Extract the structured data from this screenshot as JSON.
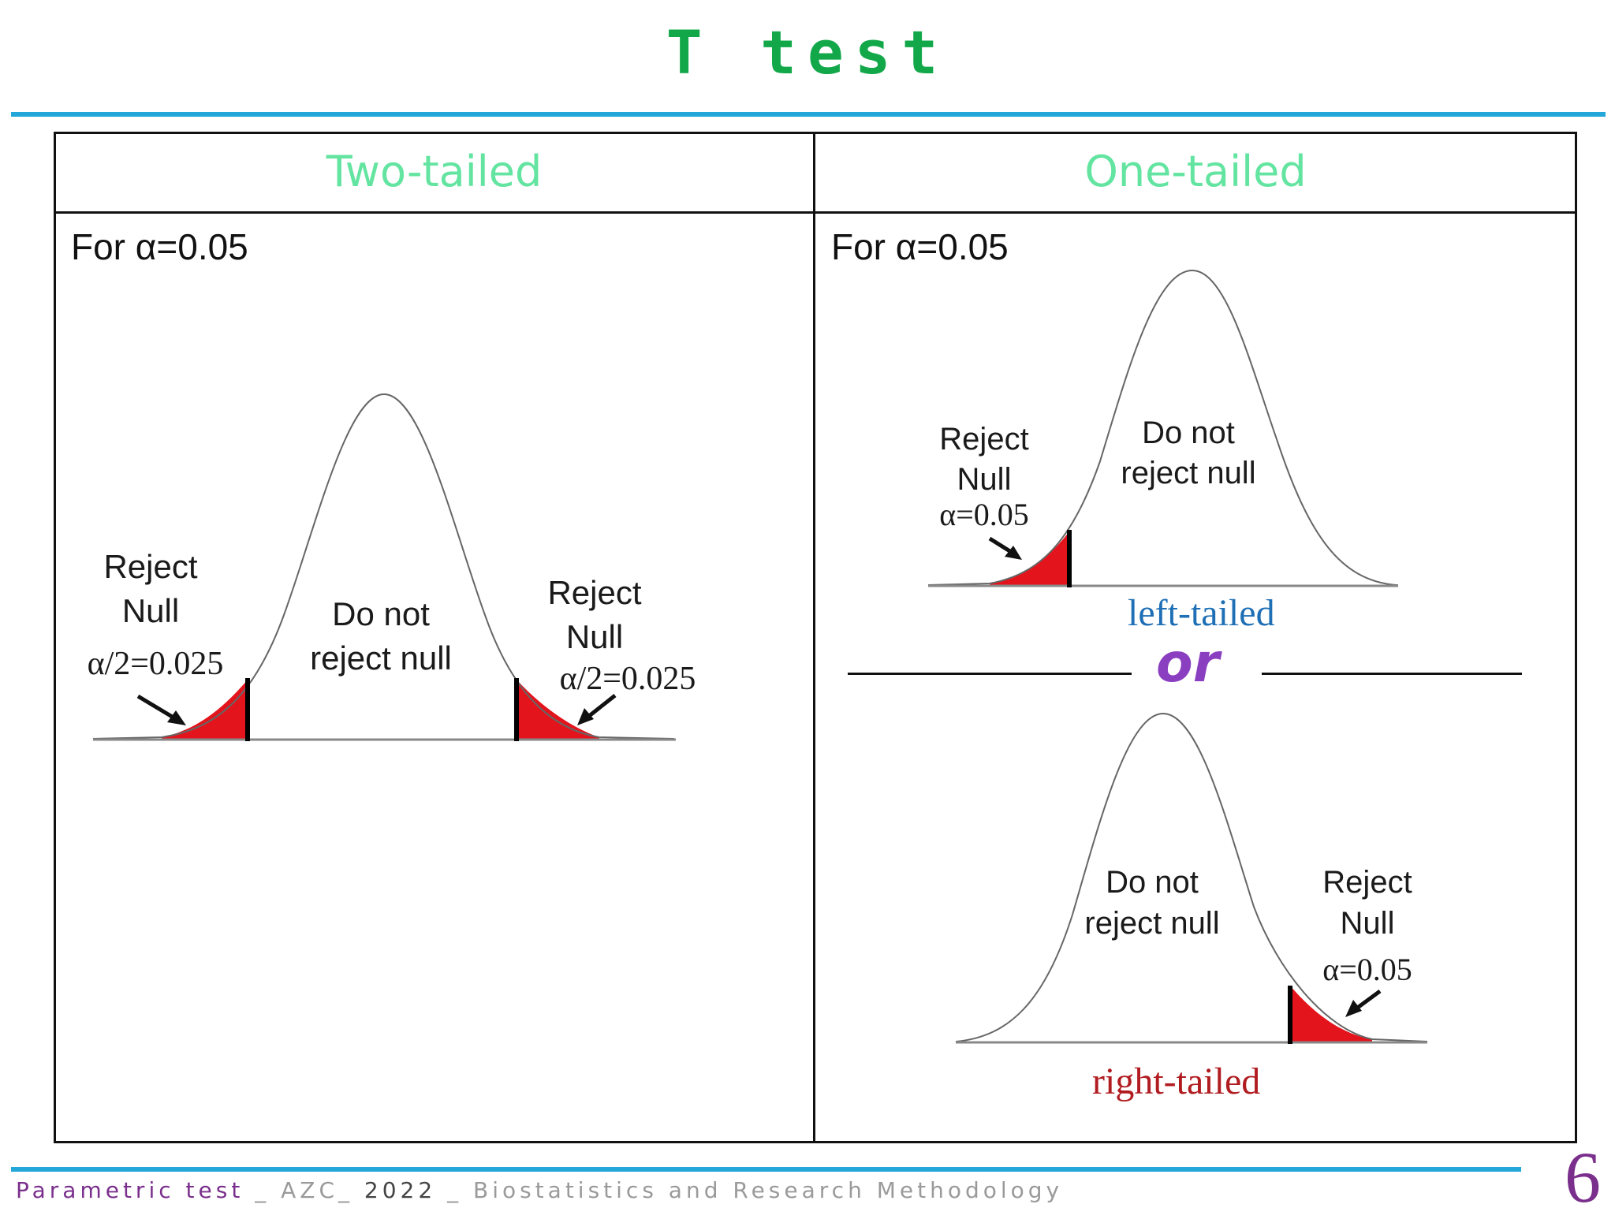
{
  "title": "T test",
  "table": {
    "headers": [
      "Two-tailed",
      "One-tailed"
    ],
    "alpha_text": "For α=0.05"
  },
  "two_tailed": {
    "reject_left": [
      "Reject",
      "Null",
      "α/2=0.025"
    ],
    "reject_right": [
      "Reject",
      "Null",
      "α/2=0.025"
    ],
    "accept": [
      "Do not",
      "reject null"
    ]
  },
  "left_tailed": {
    "reject": [
      "Reject",
      "Null",
      "α=0.05"
    ],
    "accept": [
      "Do not",
      "reject null"
    ],
    "caption": "left-tailed"
  },
  "separator": "or",
  "right_tailed": {
    "reject": [
      "Reject",
      "Null",
      "α=0.05"
    ],
    "accept": [
      "Do not",
      "reject null"
    ],
    "caption": "right-tailed"
  },
  "footer": {
    "part1": "Parametric test",
    "part2": "_ AZC_",
    "part3": "2022",
    "part4": "_ Biostatistics and Research Methodology"
  },
  "page_number": "6",
  "colors": {
    "title": "#12a84a",
    "header": "#63e4a0",
    "rule": "#23a6d8",
    "reject_fill": "#e3141c",
    "left_caption": "#1e6fb5",
    "right_caption": "#b01c20",
    "or_text": "#8a3ec0",
    "footer_accent": "#7a2f8c"
  }
}
